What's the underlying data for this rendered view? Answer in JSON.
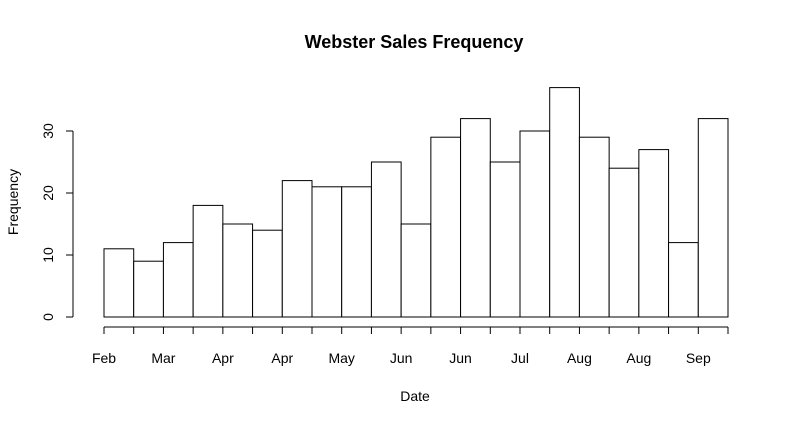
{
  "chart_data": {
    "type": "bar",
    "title": "Webster Sales Frequency",
    "xlabel": "Date",
    "ylabel": "Frequency",
    "x_tick_labels": [
      "Feb",
      "Mar",
      "Apr",
      "Apr",
      "May",
      "Jun",
      "Jun",
      "Jul",
      "Aug",
      "Aug",
      "Sep"
    ],
    "y_ticks": [
      0,
      10,
      20,
      30
    ],
    "ylim": [
      0,
      37
    ],
    "values": [
      11,
      9,
      12,
      18,
      15,
      14,
      22,
      21,
      21,
      25,
      15,
      29,
      32,
      25,
      30,
      37,
      29,
      24,
      27,
      12,
      32
    ],
    "grid": false,
    "legend": "none"
  }
}
